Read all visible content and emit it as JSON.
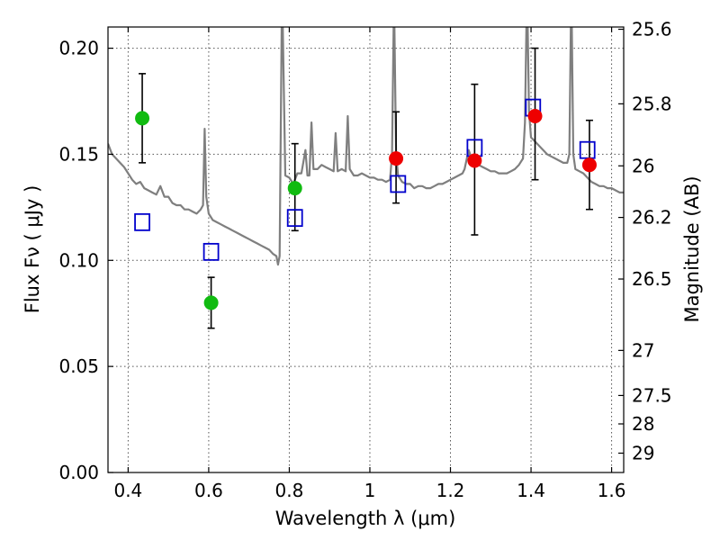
{
  "chart_data": {
    "type": "scatter",
    "xlabel": "Wavelength  λ (μm)",
    "ylabel": "Flux  Fν  ( μJy )",
    "ylabel_right": "Magnitude (AB)",
    "xlim": [
      0.35,
      1.63
    ],
    "ylim": [
      0.0,
      0.21
    ],
    "x_ticks": [
      0.4,
      0.6,
      0.8,
      1.0,
      1.2,
      1.4,
      1.6
    ],
    "x_tick_labels": [
      "0.4",
      "0.6",
      "0.8",
      "1",
      "1.2",
      "1.4",
      "1.6"
    ],
    "y_ticks": [
      0.0,
      0.05,
      0.1,
      0.15,
      0.2
    ],
    "y_tick_labels": [
      "0.00",
      "0.05",
      "0.10",
      "0.15",
      "0.20"
    ],
    "right_ticks": [
      25.6,
      25.8,
      26,
      26.2,
      26.5,
      27,
      27.5,
      28,
      29
    ],
    "right_tick_labels": [
      "25.6",
      "25.8",
      "26",
      "26.2",
      "26.5",
      "27",
      "27.5",
      "28",
      "29"
    ],
    "grid": true,
    "colors": {
      "model": "#7f7f7f",
      "green_points": "#11bb11",
      "red_points": "#ee0000",
      "model_squares": "#0000cc",
      "errorbars": "#000000"
    },
    "series": [
      {
        "kind": "points_with_errors",
        "color": "green",
        "x": [
          0.435,
          0.606,
          0.814
        ],
        "y": [
          0.167,
          0.08,
          0.134
        ],
        "yerr_low": [
          0.146,
          0.068,
          0.114
        ],
        "yerr_high": [
          0.188,
          0.092,
          0.155
        ]
      },
      {
        "kind": "points_with_errors",
        "color": "red",
        "x": [
          1.065,
          1.26,
          1.41,
          1.545
        ],
        "y": [
          0.148,
          0.147,
          0.168,
          0.145
        ],
        "yerr_low": [
          0.127,
          0.112,
          0.138,
          0.124
        ],
        "yerr_high": [
          0.17,
          0.183,
          0.2,
          0.166
        ]
      },
      {
        "kind": "model_squares",
        "color": "blue",
        "x": [
          0.435,
          0.606,
          0.814,
          1.07,
          1.26,
          1.405,
          1.54
        ],
        "y": [
          0.118,
          0.104,
          0.12,
          0.136,
          0.153,
          0.172,
          0.152
        ]
      },
      {
        "kind": "model_spectrum",
        "color": "gray",
        "points": [
          [
            0.35,
            0.155
          ],
          [
            0.36,
            0.15
          ],
          [
            0.37,
            0.148
          ],
          [
            0.38,
            0.146
          ],
          [
            0.39,
            0.144
          ],
          [
            0.4,
            0.141
          ],
          [
            0.41,
            0.138
          ],
          [
            0.42,
            0.136
          ],
          [
            0.43,
            0.137
          ],
          [
            0.44,
            0.134
          ],
          [
            0.45,
            0.133
          ],
          [
            0.46,
            0.132
          ],
          [
            0.47,
            0.131
          ],
          [
            0.48,
            0.135
          ],
          [
            0.49,
            0.13
          ],
          [
            0.5,
            0.13
          ],
          [
            0.51,
            0.127
          ],
          [
            0.52,
            0.126
          ],
          [
            0.53,
            0.126
          ],
          [
            0.54,
            0.124
          ],
          [
            0.55,
            0.124
          ],
          [
            0.56,
            0.123
          ],
          [
            0.57,
            0.122
          ],
          [
            0.58,
            0.124
          ],
          [
            0.586,
            0.126
          ],
          [
            0.59,
            0.162
          ],
          [
            0.594,
            0.13
          ],
          [
            0.6,
            0.122
          ],
          [
            0.61,
            0.119
          ],
          [
            0.62,
            0.118
          ],
          [
            0.63,
            0.117
          ],
          [
            0.64,
            0.116
          ],
          [
            0.65,
            0.115
          ],
          [
            0.66,
            0.114
          ],
          [
            0.67,
            0.113
          ],
          [
            0.68,
            0.112
          ],
          [
            0.69,
            0.111
          ],
          [
            0.7,
            0.11
          ],
          [
            0.71,
            0.109
          ],
          [
            0.72,
            0.108
          ],
          [
            0.73,
            0.107
          ],
          [
            0.74,
            0.106
          ],
          [
            0.75,
            0.105
          ],
          [
            0.76,
            0.103
          ],
          [
            0.768,
            0.102
          ],
          [
            0.772,
            0.098
          ],
          [
            0.776,
            0.102
          ],
          [
            0.782,
            0.23
          ],
          [
            0.79,
            0.14
          ],
          [
            0.8,
            0.139
          ],
          [
            0.81,
            0.136
          ],
          [
            0.82,
            0.141
          ],
          [
            0.83,
            0.141
          ],
          [
            0.84,
            0.152
          ],
          [
            0.845,
            0.14
          ],
          [
            0.85,
            0.14
          ],
          [
            0.855,
            0.165
          ],
          [
            0.86,
            0.143
          ],
          [
            0.87,
            0.143
          ],
          [
            0.88,
            0.145
          ],
          [
            0.89,
            0.144
          ],
          [
            0.9,
            0.143
          ],
          [
            0.91,
            0.142
          ],
          [
            0.915,
            0.16
          ],
          [
            0.92,
            0.142
          ],
          [
            0.93,
            0.143
          ],
          [
            0.94,
            0.142
          ],
          [
            0.945,
            0.168
          ],
          [
            0.95,
            0.143
          ],
          [
            0.96,
            0.14
          ],
          [
            0.97,
            0.14
          ],
          [
            0.98,
            0.141
          ],
          [
            0.99,
            0.14
          ],
          [
            1.0,
            0.139
          ],
          [
            1.01,
            0.139
          ],
          [
            1.02,
            0.138
          ],
          [
            1.03,
            0.138
          ],
          [
            1.04,
            0.137
          ],
          [
            1.05,
            0.138
          ],
          [
            1.055,
            0.15
          ],
          [
            1.06,
            0.225
          ],
          [
            1.065,
            0.15
          ],
          [
            1.07,
            0.14
          ],
          [
            1.08,
            0.137
          ],
          [
            1.09,
            0.136
          ],
          [
            1.1,
            0.136
          ],
          [
            1.11,
            0.134
          ],
          [
            1.12,
            0.135
          ],
          [
            1.13,
            0.135
          ],
          [
            1.14,
            0.134
          ],
          [
            1.15,
            0.134
          ],
          [
            1.16,
            0.135
          ],
          [
            1.17,
            0.136
          ],
          [
            1.18,
            0.136
          ],
          [
            1.19,
            0.137
          ],
          [
            1.2,
            0.138
          ],
          [
            1.21,
            0.139
          ],
          [
            1.22,
            0.14
          ],
          [
            1.23,
            0.141
          ],
          [
            1.235,
            0.143
          ],
          [
            1.245,
            0.152
          ],
          [
            1.255,
            0.147
          ],
          [
            1.27,
            0.145
          ],
          [
            1.28,
            0.144
          ],
          [
            1.29,
            0.143
          ],
          [
            1.3,
            0.142
          ],
          [
            1.31,
            0.142
          ],
          [
            1.32,
            0.141
          ],
          [
            1.33,
            0.141
          ],
          [
            1.34,
            0.141
          ],
          [
            1.35,
            0.142
          ],
          [
            1.36,
            0.143
          ],
          [
            1.37,
            0.145
          ],
          [
            1.38,
            0.148
          ],
          [
            1.385,
            0.165
          ],
          [
            1.39,
            0.23
          ],
          [
            1.395,
            0.17
          ],
          [
            1.4,
            0.158
          ],
          [
            1.41,
            0.156
          ],
          [
            1.42,
            0.154
          ],
          [
            1.43,
            0.152
          ],
          [
            1.44,
            0.15
          ],
          [
            1.45,
            0.149
          ],
          [
            1.46,
            0.148
          ],
          [
            1.47,
            0.147
          ],
          [
            1.48,
            0.146
          ],
          [
            1.49,
            0.146
          ],
          [
            1.495,
            0.15
          ],
          [
            1.5,
            0.23
          ],
          [
            1.505,
            0.15
          ],
          [
            1.51,
            0.143
          ],
          [
            1.52,
            0.142
          ],
          [
            1.53,
            0.141
          ],
          [
            1.54,
            0.139
          ],
          [
            1.55,
            0.137
          ],
          [
            1.56,
            0.136
          ],
          [
            1.57,
            0.135
          ],
          [
            1.58,
            0.135
          ],
          [
            1.59,
            0.134
          ],
          [
            1.6,
            0.134
          ],
          [
            1.61,
            0.133
          ],
          [
            1.62,
            0.132
          ],
          [
            1.63,
            0.132
          ]
        ]
      }
    ]
  }
}
